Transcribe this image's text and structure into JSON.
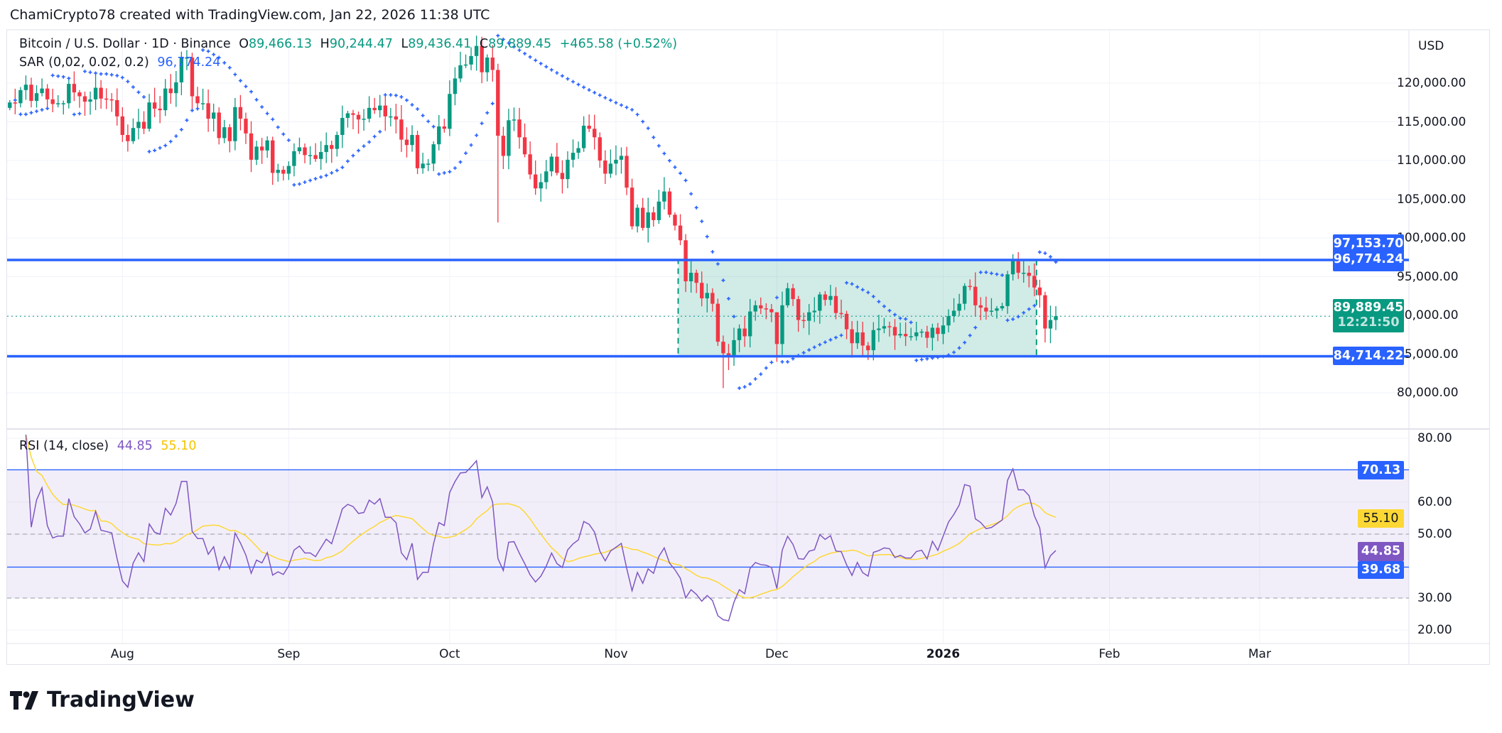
{
  "header": {
    "title": "ChamiCrypto78 created with TradingView.com, Jan 22, 2026 11:38 UTC"
  },
  "legend": {
    "symbol": "Bitcoin / U.S. Dollar · 1D · Binance",
    "o_label": "O",
    "o": "89,466.13",
    "h_label": "H",
    "h": "90,244.47",
    "l_label": "L",
    "l": "89,436.41",
    "c_label": "C",
    "c": "89,889.45",
    "change": "+465.58 (+0.52%)",
    "sar_label": "SAR (0,02, 0.02, 0.2)",
    "sar_value": "96,774.24",
    "rsi_label": "RSI (14, close)",
    "rsi_value": "44.85",
    "rsi_ma_value": "55.10"
  },
  "price_axis": {
    "currency": "USD",
    "ticks": [
      "120,000.00",
      "115,000.00",
      "110,000.00",
      "105,000.00",
      "100,000.00",
      "95,000.00",
      "90,000.00",
      "85,000.00",
      "80,000.00"
    ],
    "tick_values": [
      120000,
      115000,
      110000,
      105000,
      100000,
      95000,
      90000,
      85000,
      80000
    ],
    "tags": {
      "upper_line": "97,153.70",
      "sar": "96,774.24",
      "last": "89,889.45",
      "countdown": "12:21:50",
      "lower_line": "84,714.22"
    }
  },
  "rsi_axis": {
    "ticks": [
      "80.00",
      "60.00",
      "50.00",
      "30.00",
      "20.00"
    ],
    "tick_values": [
      80,
      60,
      50,
      30,
      20
    ],
    "tags": {
      "upper_line": "70.13",
      "ma": "55.10",
      "rsi": "44.85",
      "lower_line": "39.68"
    }
  },
  "time_axis": [
    {
      "label": "Aug",
      "date": "2025-08-01"
    },
    {
      "label": "Sep",
      "date": "2025-09-01"
    },
    {
      "label": "Oct",
      "date": "2025-10-01"
    },
    {
      "label": "Nov",
      "date": "2025-11-01"
    },
    {
      "label": "Dec",
      "date": "2025-12-01"
    },
    {
      "label": "2026",
      "date": "2026-01-01"
    },
    {
      "label": "Feb",
      "date": "2026-02-01"
    },
    {
      "label": "Mar",
      "date": "2026-03-01"
    }
  ],
  "brand": {
    "name": "TradingView"
  },
  "colors": {
    "up": "#089981",
    "down": "#f23645",
    "line": "#2962ff",
    "sar": "#2962ff",
    "rsi": "#7e57c2",
    "rsi_ma": "#fdd835",
    "box_fill": "rgba(8,153,129,0.19)",
    "box_border": "#089981",
    "rsi_band": "rgba(126,87,194,0.1)"
  },
  "chart_data": {
    "type": "candlestick",
    "symbol": "BTCUSD",
    "interval": "1D",
    "start_date": "2025-07-11",
    "first_open": 116800,
    "ylim": [
      78000,
      126000
    ],
    "grid": true,
    "close": [
      117500,
      117400,
      119100,
      119800,
      117700,
      118700,
      119300,
      117900,
      117300,
      117400,
      117400,
      119900,
      118800,
      118300,
      117600,
      117900,
      119400,
      118000,
      117900,
      117800,
      115700,
      113300,
      112500,
      114200,
      115000,
      114100,
      117500,
      116700,
      116500,
      119300,
      118700,
      120100,
      123300,
      123300,
      118300,
      117400,
      117400,
      115400,
      116200,
      112900,
      114300,
      112500,
      116900,
      115400,
      113500,
      110100,
      111800,
      111300,
      112600,
      108400,
      108800,
      108300,
      109300,
      111200,
      111700,
      110700,
      110700,
      110200,
      111100,
      112000,
      111500,
      113300,
      115500,
      116100,
      115900,
      115300,
      115400,
      116800,
      116500,
      117100,
      115700,
      115700,
      115300,
      112700,
      112000,
      113300,
      109000,
      109600,
      109600,
      112100,
      114400,
      114100,
      118600,
      120600,
      122300,
      122400,
      123500,
      124800,
      121400,
      123300,
      121700,
      113200,
      110600,
      115200,
      115300,
      113000,
      110800,
      108200,
      106400,
      107200,
      108600,
      110500,
      108400,
      107600,
      110100,
      111000,
      111600,
      114500,
      114100,
      113000,
      110000,
      108300,
      109600,
      110100,
      110600,
      106500,
      101500,
      103900,
      101300,
      103300,
      102300,
      104700,
      106000,
      103000,
      101600,
      99700,
      94400,
      95500,
      94200,
      92200,
      92900,
      91500,
      86600,
      85100,
      84700,
      86800,
      88300,
      87300,
      90500,
      91300,
      90900,
      90800,
      90400,
      86300,
      91300,
      93500,
      92100,
      89400,
      89300,
      90400,
      90600,
      92700,
      92000,
      92500,
      90300,
      90200,
      88200,
      86400,
      87800,
      86100,
      85500,
      88100,
      88300,
      88600,
      88500,
      87400,
      87600,
      87300,
      87300,
      87800,
      87900,
      87100,
      88400,
      87600,
      88700,
      89900,
      90600,
      91500,
      93800,
      93700,
      91300,
      91000,
      90500,
      90600,
      90900,
      91200,
      95300,
      97000,
      95500,
      95500,
      95100,
      93600,
      92600,
      88300,
      89400,
      89889.45
    ],
    "notable_wicks": [
      {
        "date": "2025-10-10",
        "high": 122500,
        "low": 102000
      },
      {
        "date": "2025-11-21",
        "high": 87400,
        "low": 80600
      },
      {
        "date": "2025-12-03",
        "high": 94200,
        "low": 91000
      },
      {
        "date": "2025-12-01",
        "high": 90400,
        "low": 84000
      },
      {
        "date": "2026-01-14",
        "high": 97900,
        "low": 94500
      }
    ],
    "horizontal_lines": [
      97153.7,
      84714.22
    ],
    "rectangle": {
      "from": "2025-11-13",
      "to": "2026-01-18",
      "top": 97153.7,
      "bottom": 84714.22
    },
    "indicators": {
      "sar": {
        "start": 0.02,
        "increment": 0.02,
        "max": 0.2,
        "last": 96774.24
      },
      "rsi": {
        "length": 14,
        "source": "close",
        "last": 44.85,
        "ma_last": 55.1,
        "ylim": [
          17,
          83
        ],
        "levels": [
          70.13,
          39.68
        ],
        "dashed_levels": [
          50,
          30
        ]
      }
    }
  }
}
